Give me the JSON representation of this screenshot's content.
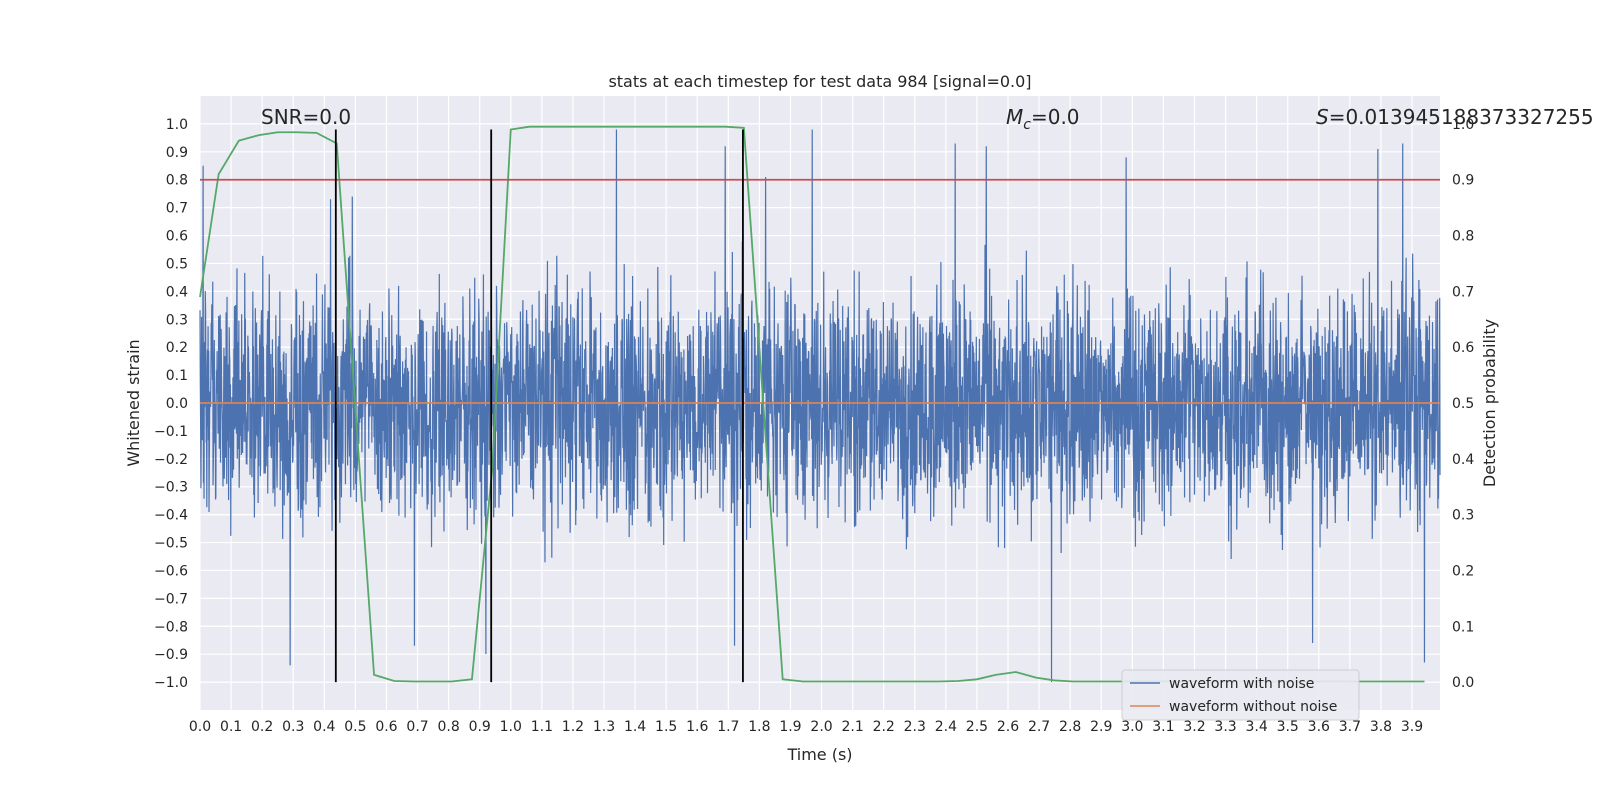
{
  "chart_data": {
    "type": "line",
    "title": "stats at each timestep for test data 984 [signal=0.0]",
    "xlabel": "Time (s)",
    "ylabel_left": "Whitened strain",
    "ylabel_right": "Detection probability",
    "xlim": [
      0.0,
      3.99
    ],
    "ylim_left": [
      -1.1,
      1.1
    ],
    "ylim_right": [
      -0.05,
      1.05
    ],
    "grid": true,
    "legend_placement": "lower-right",
    "x_ticks": [
      "0.0",
      "0.1",
      "0.2",
      "0.3",
      "0.4",
      "0.5",
      "0.6",
      "0.7",
      "0.8",
      "0.9",
      "1.0",
      "1.1",
      "1.2",
      "1.3",
      "1.4",
      "1.5",
      "1.6",
      "1.7",
      "1.8",
      "1.9",
      "2.0",
      "2.1",
      "2.2",
      "2.3",
      "2.4",
      "2.5",
      "2.6",
      "2.7",
      "2.8",
      "2.9",
      "3.0",
      "3.1",
      "3.2",
      "3.3",
      "3.4",
      "3.5",
      "3.6",
      "3.7",
      "3.8",
      "3.9"
    ],
    "y_ticks_left": [
      "1.0",
      "0.9",
      "0.8",
      "0.7",
      "0.6",
      "0.5",
      "0.4",
      "0.3",
      "0.2",
      "0.1",
      "0.0",
      "−0.1",
      "−0.2",
      "−0.3",
      "−0.4",
      "−0.5",
      "−0.6",
      "−0.7",
      "−0.8",
      "−0.9",
      "−1.0"
    ],
    "y_ticks_right": [
      "1.0",
      "0.9",
      "0.8",
      "0.7",
      "0.6",
      "0.5",
      "0.4",
      "0.3",
      "0.2",
      "0.1",
      "0.0"
    ],
    "annotations": {
      "snr": "SNR=0.0",
      "mc_symbol": "M",
      "mc_sub": "c",
      "mc_value": "=0.0",
      "s_symbol": "S",
      "s_value": "=0.013945188373327255"
    },
    "series": [
      {
        "name": "waveform with noise",
        "axis": "left",
        "color": "#4c72b0",
        "sample_rate": 1000,
        "noise_amplitude_envelope": 0.6,
        "peaks": [
          {
            "x": 0.01,
            "y": 0.85
          },
          {
            "x": 0.29,
            "y": -0.94
          },
          {
            "x": 0.42,
            "y": 0.73
          },
          {
            "x": 0.49,
            "y": 0.74
          },
          {
            "x": 0.69,
            "y": -0.87
          },
          {
            "x": 0.92,
            "y": -0.9
          },
          {
            "x": 1.34,
            "y": 0.98
          },
          {
            "x": 1.69,
            "y": 0.92
          },
          {
            "x": 1.72,
            "y": -0.87
          },
          {
            "x": 1.82,
            "y": 0.81
          },
          {
            "x": 1.97,
            "y": 0.98
          },
          {
            "x": 2.43,
            "y": 0.93
          },
          {
            "x": 2.53,
            "y": 0.92
          },
          {
            "x": 2.74,
            "y": -1.0
          },
          {
            "x": 2.98,
            "y": 0.88
          },
          {
            "x": 3.58,
            "y": -0.86
          },
          {
            "x": 3.79,
            "y": 0.91
          },
          {
            "x": 3.87,
            "y": 0.93
          },
          {
            "x": 3.94,
            "y": -0.93
          }
        ]
      },
      {
        "name": "waveform without noise",
        "axis": "left",
        "color": "#dd8452",
        "x": [
          0.0,
          3.99
        ],
        "y": [
          0.0,
          0.0
        ]
      },
      {
        "name": "",
        "axis": "right",
        "color": "#55a868",
        "x": [
          0.0,
          0.06,
          0.125,
          0.19,
          0.25,
          0.31,
          0.375,
          0.44,
          0.56,
          0.625,
          0.69,
          0.75,
          0.81,
          0.875,
          0.94,
          1.0,
          1.06,
          1.125,
          1.19,
          1.25,
          1.31,
          1.375,
          1.44,
          1.5,
          1.56,
          1.625,
          1.69,
          1.75,
          1.875,
          1.94,
          2.0,
          2.06,
          2.125,
          2.19,
          2.25,
          2.31,
          2.375,
          2.44,
          2.5,
          2.56,
          2.625,
          2.69,
          2.75,
          2.81,
          2.875,
          2.94,
          3.0,
          3.06,
          3.125,
          3.19,
          3.25,
          3.31,
          3.375,
          3.44,
          3.5,
          3.56,
          3.625,
          3.69,
          3.75,
          3.81,
          3.875,
          3.94
        ],
        "y": [
          0.69,
          0.91,
          0.97,
          0.98,
          0.985,
          0.985,
          0.984,
          0.965,
          0.013,
          0.002,
          0.001,
          0.001,
          0.001,
          0.005,
          0.38,
          0.99,
          0.995,
          0.995,
          0.995,
          0.995,
          0.995,
          0.995,
          0.995,
          0.995,
          0.995,
          0.995,
          0.995,
          0.993,
          0.005,
          0.001,
          0.001,
          0.001,
          0.001,
          0.001,
          0.001,
          0.001,
          0.001,
          0.002,
          0.005,
          0.013,
          0.018,
          0.008,
          0.003,
          0.001,
          0.001,
          0.001,
          0.001,
          0.001,
          0.001,
          0.001,
          0.001,
          0.001,
          0.001,
          0.001,
          0.001,
          0.001,
          0.001,
          0.001,
          0.001,
          0.001,
          0.001,
          0.001
        ]
      },
      {
        "name": "",
        "axis": "right",
        "color": "#c44e52",
        "x": [
          0.0,
          3.99
        ],
        "y": [
          0.9,
          0.9
        ]
      }
    ],
    "vertical_lines": [
      {
        "x": 0.437,
        "y_range": [
          -1.0,
          0.98
        ],
        "color": "#000000"
      },
      {
        "x": 0.937,
        "y_range": [
          -1.0,
          0.98
        ],
        "color": "#000000"
      },
      {
        "x": 1.747,
        "y_range": [
          -1.0,
          0.98
        ],
        "color": "#000000"
      }
    ]
  }
}
